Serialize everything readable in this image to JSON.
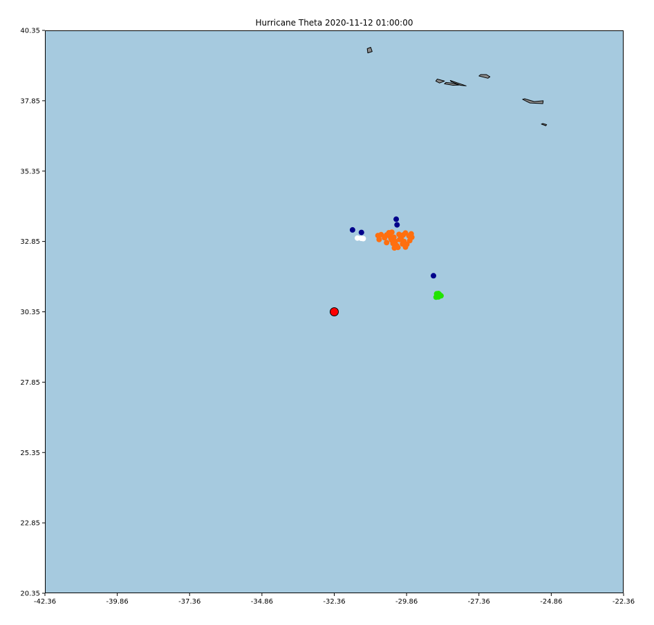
{
  "title": "Hurricane Theta 2020-11-12 01:00:00",
  "chart_data": {
    "type": "scatter",
    "title": "Hurricane Theta 2020-11-12 01:00:00",
    "xlim": [
      -42.36,
      -22.36
    ],
    "ylim": [
      20.35,
      40.35
    ],
    "x_ticks": [
      "-42.36",
      "-39.86",
      "-37.36",
      "-34.86",
      "-32.36",
      "-29.86",
      "-27.36",
      "-24.86",
      "-22.36"
    ],
    "y_ticks": [
      "20.35",
      "22.85",
      "25.35",
      "27.85",
      "30.35",
      "32.85",
      "35.35",
      "37.85",
      "40.35"
    ],
    "grid": false,
    "colors": {
      "ocean": "#a6cadf",
      "land": "#8c8c8c",
      "center": "#ff0000",
      "navy": "#00008b",
      "orange": "#ff6f0f",
      "white": "#ffffff",
      "green": "#22e400"
    },
    "storm_center": {
      "lon": -32.36,
      "lat": 30.35
    },
    "series": [
      {
        "color": "navy",
        "points": [
          [
            -31.73,
            33.26
          ],
          [
            -31.42,
            33.17
          ],
          [
            -30.22,
            33.64
          ],
          [
            -30.19,
            33.44
          ],
          [
            -28.93,
            31.63
          ]
        ]
      },
      {
        "color": "white",
        "points": [
          [
            -31.56,
            32.97
          ],
          [
            -31.43,
            32.96
          ],
          [
            -31.36,
            32.95
          ]
        ]
      },
      {
        "color": "green",
        "points": [
          [
            -28.82,
            30.99
          ],
          [
            -28.76,
            31.0
          ],
          [
            -28.72,
            30.96
          ],
          [
            -28.67,
            30.92
          ],
          [
            -28.84,
            30.87
          ],
          [
            -28.76,
            30.88
          ]
        ]
      },
      {
        "color": "orange",
        "points": [
          [
            -30.85,
            33.06
          ],
          [
            -30.74,
            33.09
          ],
          [
            -30.81,
            32.92
          ],
          [
            -30.55,
            32.81
          ],
          [
            -30.62,
            32.98
          ],
          [
            -30.47,
            33.16
          ],
          [
            -30.37,
            33.18
          ],
          [
            -30.45,
            33.05
          ],
          [
            -30.3,
            33.0
          ],
          [
            -30.38,
            32.9
          ],
          [
            -30.25,
            32.85
          ],
          [
            -30.33,
            32.78
          ],
          [
            -30.2,
            32.7
          ],
          [
            -30.28,
            32.62
          ],
          [
            -30.16,
            32.64
          ],
          [
            -30.05,
            32.98
          ],
          [
            -29.98,
            33.08
          ],
          [
            -29.9,
            33.15
          ],
          [
            -29.95,
            32.85
          ],
          [
            -29.85,
            32.75
          ],
          [
            -29.9,
            32.65
          ],
          [
            -29.78,
            33.05
          ],
          [
            -29.7,
            33.12
          ],
          [
            -29.68,
            33.0
          ],
          [
            -29.75,
            32.88
          ],
          [
            -30.1,
            32.92
          ],
          [
            -30.0,
            32.76
          ],
          [
            -30.12,
            33.1
          ],
          [
            -30.4,
            32.95
          ],
          [
            -30.55,
            33.08
          ]
        ]
      }
    ],
    "land_polygons": [
      [
        [
          -31.2,
          39.55
        ],
        [
          -31.05,
          39.6
        ],
        [
          -31.1,
          39.75
        ],
        [
          -31.22,
          39.7
        ]
      ],
      [
        [
          -28.32,
          38.53
        ],
        [
          -28.0,
          38.4
        ],
        [
          -27.8,
          38.38
        ],
        [
          -28.35,
          38.57
        ]
      ],
      [
        [
          -28.8,
          38.62
        ],
        [
          -28.55,
          38.55
        ],
        [
          -28.72,
          38.48
        ],
        [
          -28.85,
          38.55
        ]
      ],
      [
        [
          -28.55,
          38.45
        ],
        [
          -28.25,
          38.4
        ],
        [
          -28.05,
          38.41
        ],
        [
          -28.3,
          38.48
        ],
        [
          -28.5,
          38.5
        ]
      ],
      [
        [
          -27.36,
          38.73
        ],
        [
          -27.05,
          38.65
        ],
        [
          -26.98,
          38.7
        ],
        [
          -27.1,
          38.78
        ],
        [
          -27.3,
          38.78
        ]
      ],
      [
        [
          -25.85,
          37.9
        ],
        [
          -25.6,
          37.77
        ],
        [
          -25.15,
          37.75
        ],
        [
          -25.14,
          37.85
        ],
        [
          -25.45,
          37.82
        ],
        [
          -25.78,
          37.92
        ]
      ],
      [
        [
          -25.2,
          37.02
        ],
        [
          -25.05,
          36.96
        ],
        [
          -25.02,
          37.0
        ],
        [
          -25.15,
          37.04
        ]
      ]
    ]
  }
}
